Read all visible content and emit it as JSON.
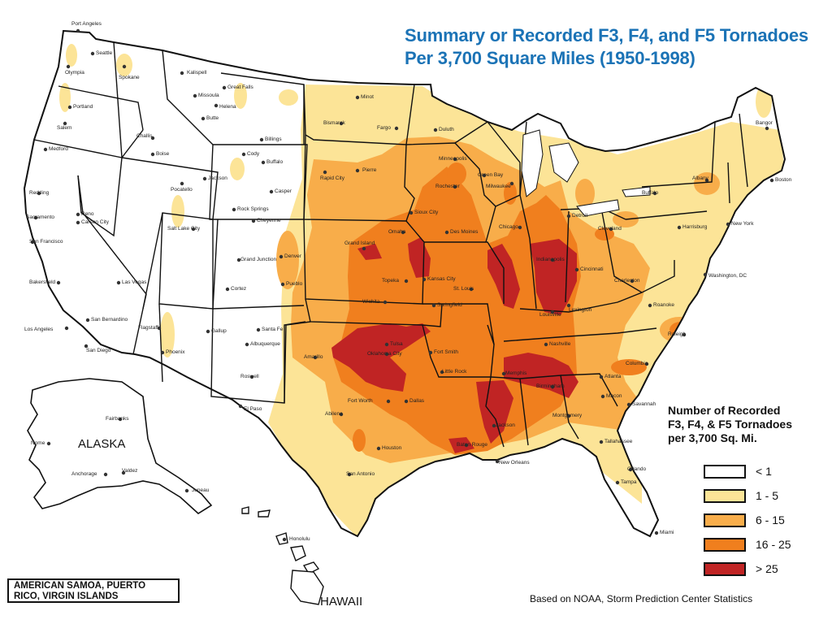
{
  "map": {
    "title_line1": "Summary or Recorded F3, F4, and F5 Tornadoes",
    "title_line2": "Per 3,700 Square Miles (1950-1998)",
    "source": "Based on NOAA, Storm Prediction Center Statistics",
    "inset_note_line1": "AMERICAN SAMOA, PUERTO",
    "inset_note_line2": "RICO, VIRGIN ISLANDS",
    "insets": {
      "alaska": "ALASKA",
      "hawaii": "HAWAII"
    }
  },
  "legend": {
    "title_line1": "Number of Recorded",
    "title_line2": "F3, F4, & F5 Tornadoes",
    "title_line3": "per 3,700 Sq. Mi.",
    "items": [
      {
        "label": "< 1",
        "color": "#ffffff"
      },
      {
        "label": "1 - 5",
        "color": "#fce497"
      },
      {
        "label": "6 - 15",
        "color": "#f8ad4a"
      },
      {
        "label": "16 - 25",
        "color": "#f07f1e"
      },
      {
        "label": "> 25",
        "color": "#c02424"
      }
    ]
  },
  "cities": [
    "Port Angeles",
    "Seattle",
    "Olympia",
    "Spokane",
    "Portland",
    "Salem",
    "Medford",
    "Kalispell",
    "Missoula",
    "Great Falls",
    "Helena",
    "Butte",
    "Billings",
    "Challis",
    "Boise",
    "Pocatello",
    "Cody",
    "Buffalo",
    "Jackson",
    "Casper",
    "Rock Springs",
    "Cheyenne",
    "Redding",
    "Sacramento",
    "Reno",
    "Carson City",
    "San Francisco",
    "Bakersfield",
    "Los Angeles",
    "San Bernardino",
    "San Diego",
    "Las Vegas",
    "Salt Lake City",
    "Grand Junction",
    "Cortez",
    "Denver",
    "Pueblo",
    "Flagstaff",
    "Phoenix",
    "Gallup",
    "Santa Fe",
    "Albuquerque",
    "Roswell",
    "El Paso",
    "Minot",
    "Bismarck",
    "Fargo",
    "Rapid City",
    "Pierre",
    "Duluth",
    "Minneapolis",
    "Rochester",
    "Sioux City",
    "Des Moines",
    "Omaha",
    "Grand Island",
    "Topeka",
    "Kansas City",
    "Wichita",
    "Springfield",
    "St. Louis",
    "Tulsa",
    "Oklahoma City",
    "Fort Smith",
    "Amarillo",
    "Little Rock",
    "Fort Worth",
    "Dallas",
    "Abilene",
    "Houston",
    "San Antonio",
    "Baton Rouge",
    "New Orleans",
    "Jackson",
    "Memphis",
    "Nashville",
    "Birmingham",
    "Montgomery",
    "Atlanta",
    "Macon",
    "Savannah",
    "Tallahassee",
    "Orlando",
    "Tampa",
    "Miami",
    "Columbia",
    "Raleigh",
    "Roanoke",
    "Charleston",
    "Lexington",
    "Louisville",
    "Cincinnati",
    "Indianapolis",
    "Chicago",
    "Milwaukee",
    "Green Bay",
    "Detroit",
    "Cleveland",
    "Harrisburg",
    "Buffalo",
    "Albany",
    "New York",
    "Washington, DC",
    "Boston",
    "Bangor",
    "Fairbanks",
    "Nome",
    "Anchorage",
    "Valdez",
    "Juneau",
    "Honolulu"
  ]
}
